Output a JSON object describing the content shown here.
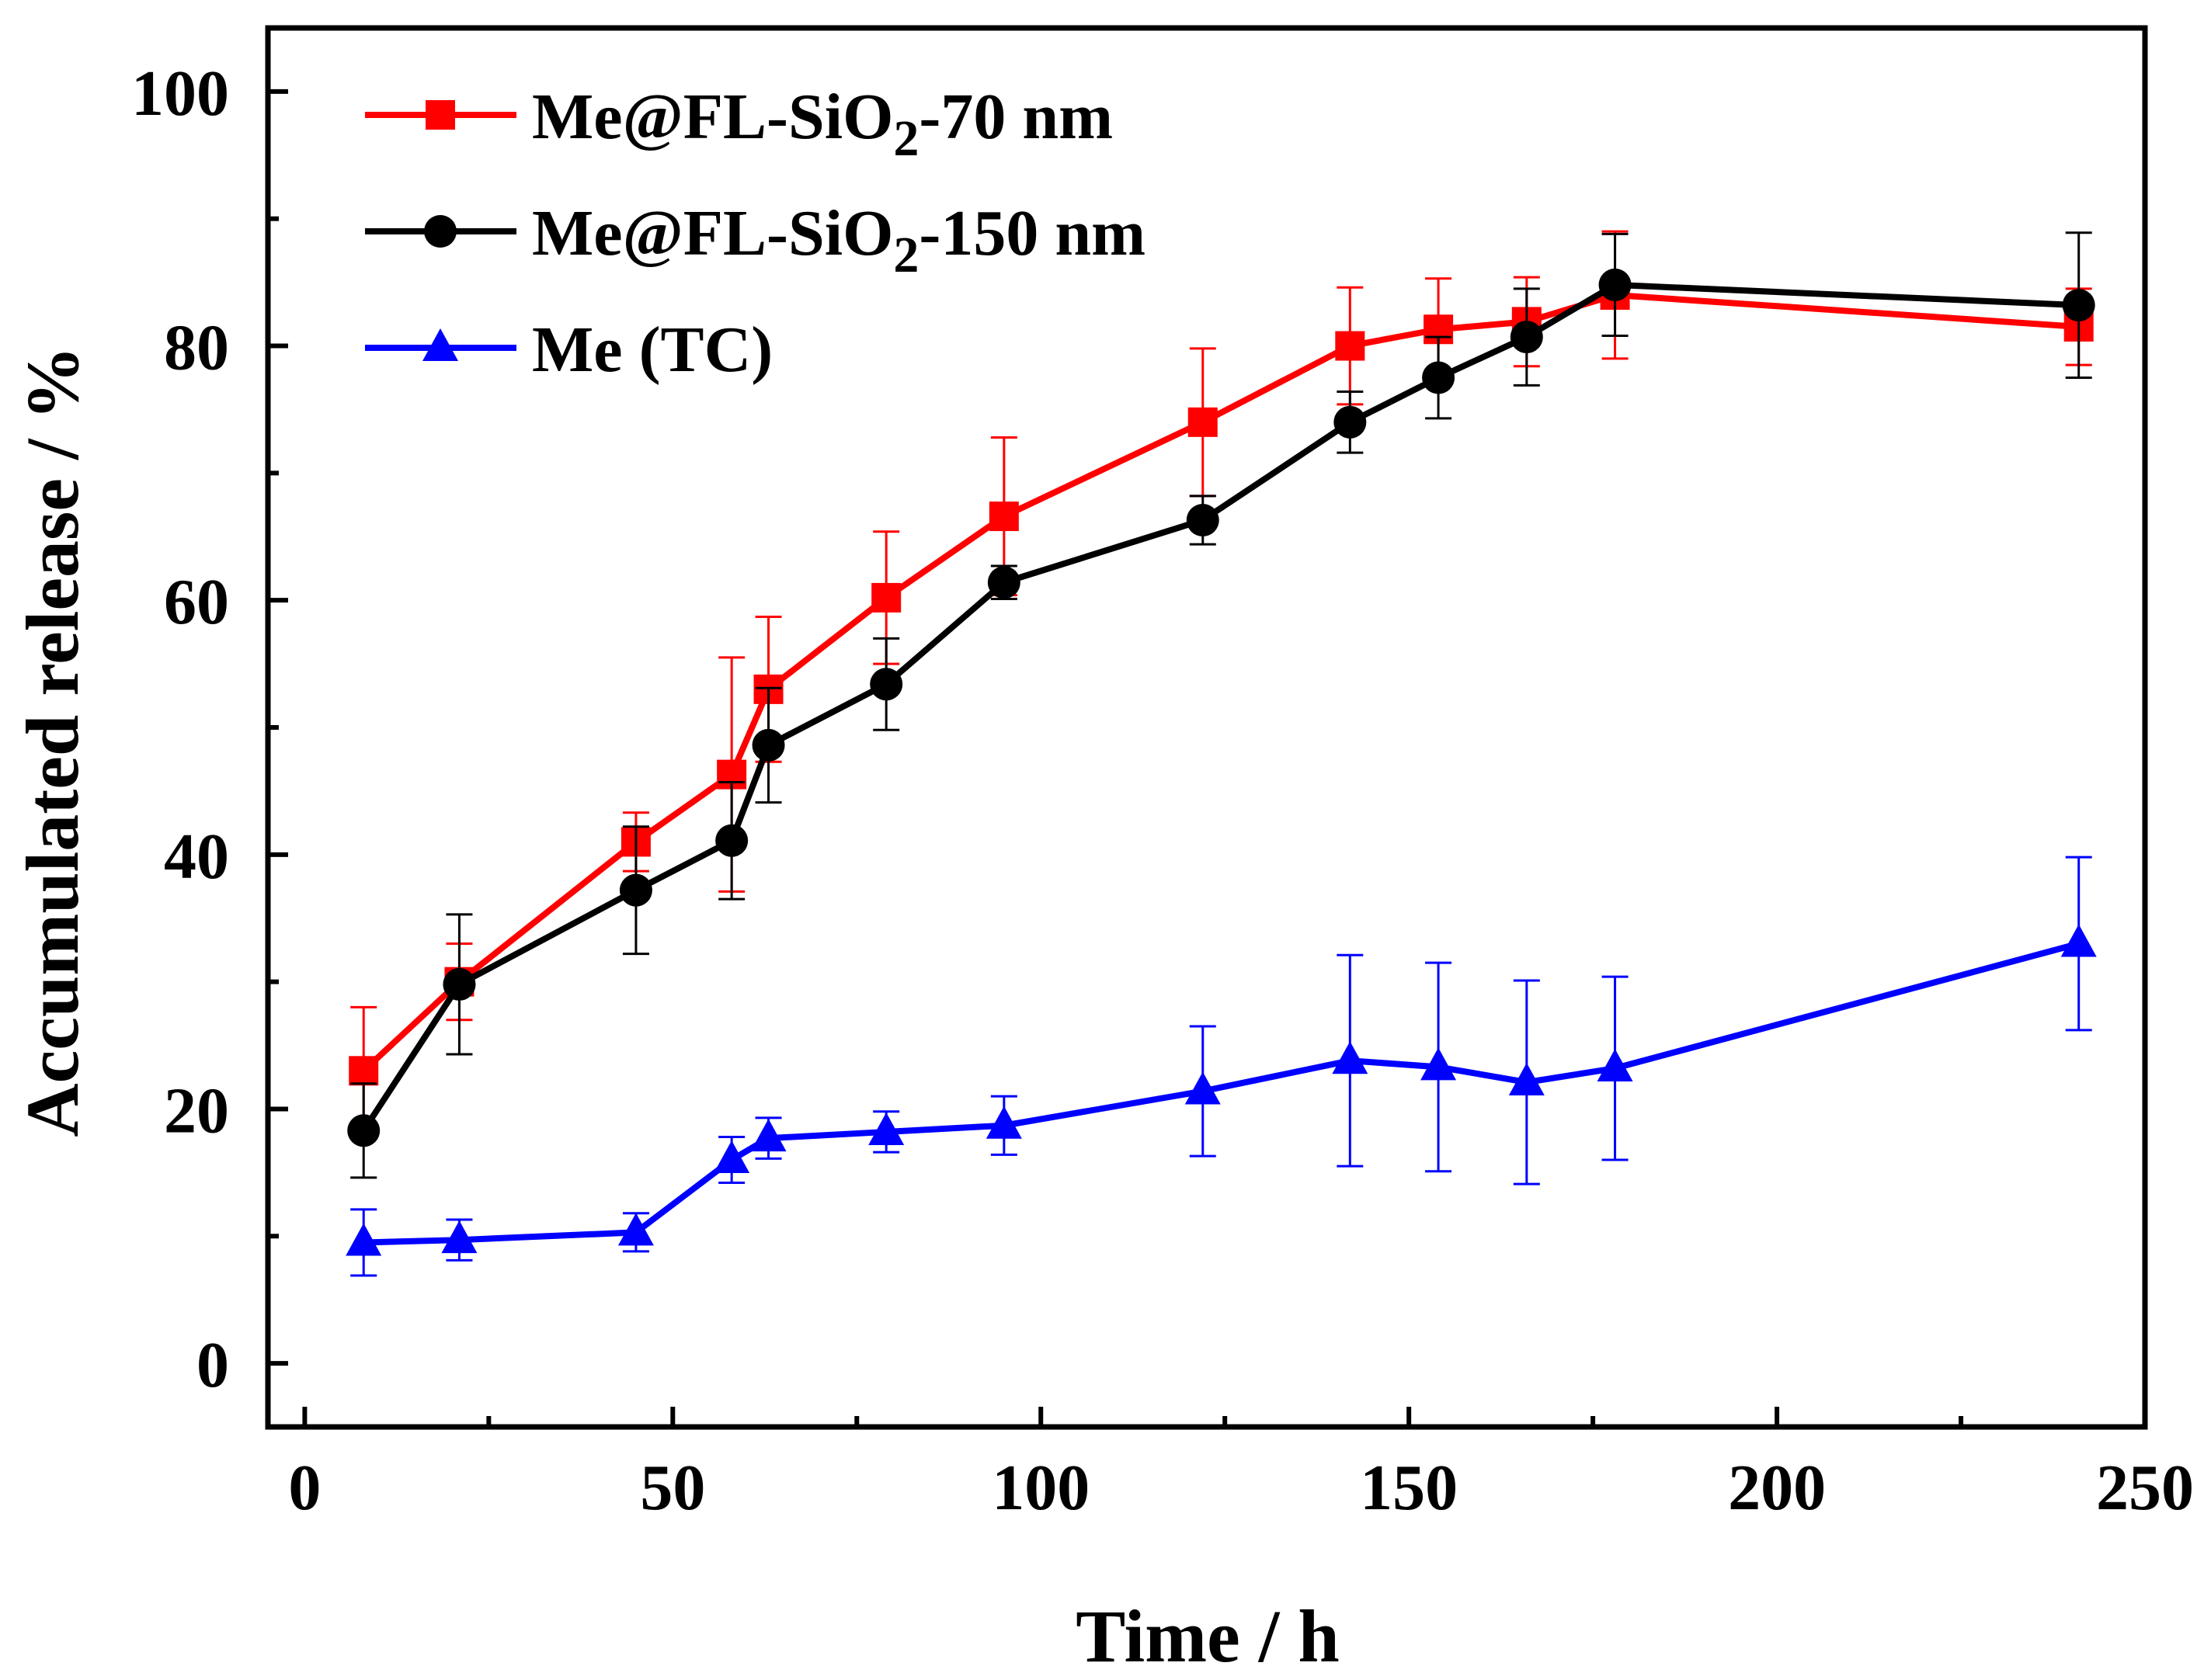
{
  "chart_data": {
    "type": "line",
    "title": "",
    "xlabel": "Time / h",
    "ylabel": "Accumulated release / %",
    "xlim": [
      -5,
      250
    ],
    "ylim": [
      -5,
      105
    ],
    "xticks": [
      0,
      50,
      100,
      150,
      200,
      250
    ],
    "xticks_minor": [
      25,
      75,
      125,
      175,
      225
    ],
    "yticks": [
      0,
      20,
      40,
      60,
      80,
      100
    ],
    "yticks_minor": [
      10,
      30,
      50,
      70,
      90
    ],
    "grid": false,
    "legend_position": "top-left",
    "series": [
      {
        "name": "Me@FL-SiO2-70 nm",
        "legend_main": "Me@FL-SiO",
        "legend_sub": "2",
        "legend_suffix": "-70 nm",
        "color": "#ff0000",
        "marker": "square",
        "x": [
          8,
          21,
          45,
          58,
          63,
          79,
          95,
          122,
          142,
          154,
          166,
          178,
          241
        ],
        "y": [
          23,
          30,
          41,
          46.3,
          53,
          60.2,
          66.6,
          74,
          80,
          81.3,
          81.9,
          84,
          81.5
        ],
        "err": [
          5,
          3,
          2.3,
          9.2,
          5.7,
          5.2,
          6.2,
          5.8,
          4.6,
          4,
          3.5,
          5,
          3
        ]
      },
      {
        "name": "Me@FL-SiO2-150 nm",
        "legend_main": "Me@FL-SiO",
        "legend_sub": "2",
        "legend_suffix": "-150 nm",
        "color": "#000000",
        "marker": "circle",
        "x": [
          8,
          21,
          45,
          58,
          63,
          79,
          95,
          122,
          142,
          154,
          166,
          178,
          241
        ],
        "y": [
          18.3,
          29.8,
          37.2,
          41.1,
          48.6,
          53.4,
          61.4,
          66.3,
          74,
          77.5,
          80.7,
          84.8,
          83.2
        ],
        "err": [
          3.7,
          5.5,
          5,
          4.6,
          4.5,
          3.6,
          1.3,
          1.9,
          2.4,
          3.2,
          3.8,
          4,
          5.7
        ]
      },
      {
        "name": "Me (TC)",
        "legend_main": "Me (TC)",
        "legend_sub": "",
        "legend_suffix": "",
        "color": "#0000ff",
        "marker": "triangle",
        "x": [
          8,
          21,
          45,
          58,
          63,
          79,
          95,
          122,
          142,
          154,
          166,
          178,
          241
        ],
        "y": [
          9.5,
          9.7,
          10.3,
          16,
          17.7,
          18.2,
          18.7,
          21.4,
          23.8,
          23.3,
          22.1,
          23.2,
          33
        ],
        "err": [
          2.6,
          1.6,
          1.5,
          1.8,
          1.6,
          1.6,
          2.3,
          5.1,
          8.3,
          8.2,
          8,
          7.2,
          6.8
        ]
      }
    ]
  }
}
